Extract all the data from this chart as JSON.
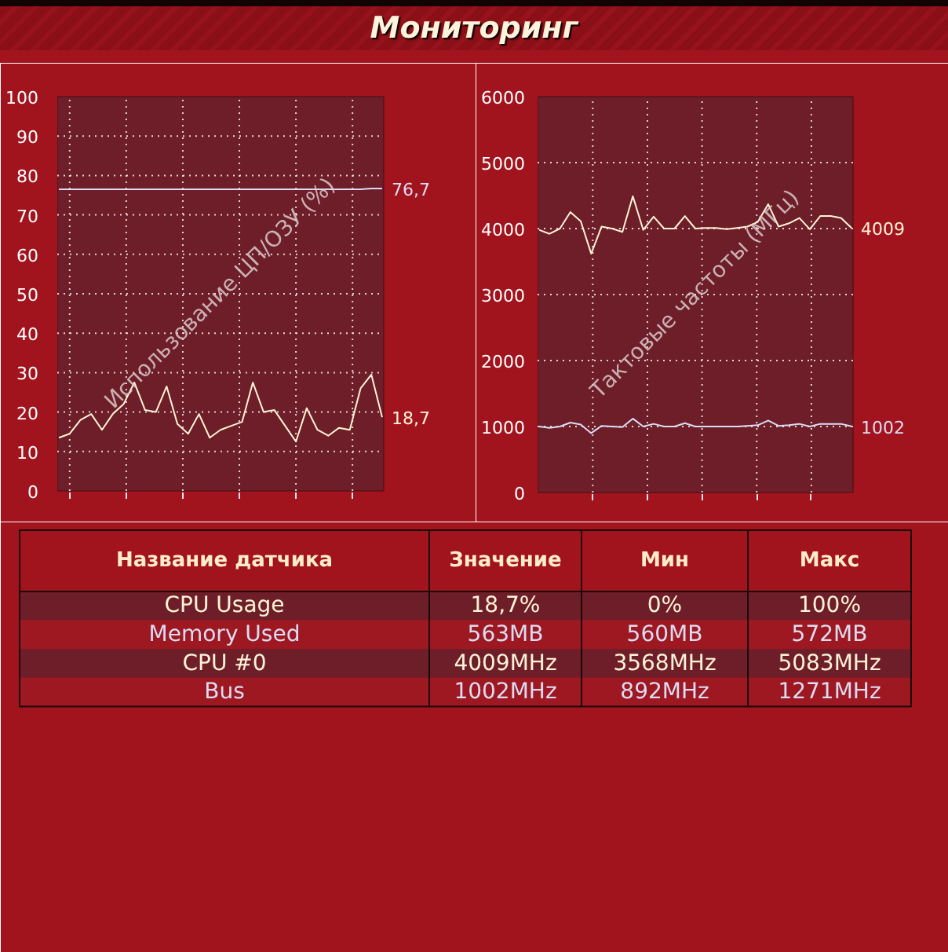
{
  "chart_data": [
    {
      "type": "line",
      "title": "Мониторинг",
      "ylabel": "Использование ЦП/ОЗУ (%)",
      "categories": [
        null,
        null,
        null,
        null,
        null,
        null,
        null,
        null,
        null,
        null,
        null,
        null,
        null,
        null,
        null,
        null,
        null,
        null,
        null,
        null,
        null,
        null,
        null,
        null,
        null,
        null,
        null,
        null,
        null,
        null,
        null
      ],
      "ylim": [
        0,
        100
      ],
      "yticks": [
        0,
        10,
        20,
        30,
        40,
        50,
        60,
        70,
        80,
        90,
        100
      ],
      "grid": true,
      "series": [
        {
          "color": "#dcdcf4",
          "values": [
            76.5,
            76.5,
            76.5,
            76.5,
            76.5,
            76.5,
            76.5,
            76.5,
            76.5,
            76.5,
            76.5,
            76.5,
            76.5,
            76.5,
            76.5,
            76.5,
            76.5,
            76.5,
            76.5,
            76.5,
            76.5,
            76.5,
            76.5,
            76.5,
            76.5,
            76.5,
            76.5,
            76.5,
            76.5,
            76.7,
            76.7
          ],
          "value_labels": [
            null,
            null,
            null,
            null,
            null,
            null,
            null,
            null,
            null,
            null,
            null,
            null,
            null,
            null,
            null,
            null,
            null,
            null,
            null,
            null,
            null,
            null,
            null,
            null,
            null,
            null,
            null,
            null,
            null,
            null,
            "76,7"
          ]
        },
        {
          "color": "#fff3d6",
          "values": [
            13.5,
            14.5,
            18,
            19.5,
            15.5,
            19.5,
            22,
            27.5,
            20.5,
            20,
            26.5,
            17,
            14.5,
            19.5,
            13.5,
            15.5,
            16.5,
            17.5,
            27.5,
            20,
            20.5,
            16.5,
            12.5,
            21,
            15.5,
            14,
            16,
            15.5,
            26,
            29.5,
            18.7
          ],
          "value_labels": [
            null,
            null,
            null,
            null,
            null,
            null,
            null,
            null,
            null,
            null,
            null,
            null,
            null,
            null,
            null,
            null,
            null,
            null,
            null,
            null,
            null,
            null,
            null,
            null,
            null,
            null,
            null,
            null,
            null,
            null,
            "18,7"
          ]
        }
      ]
    },
    {
      "type": "line",
      "ylabel": "Тактовые частоты (МГц)",
      "categories": [
        null,
        null,
        null,
        null,
        null,
        null,
        null,
        null,
        null,
        null,
        null,
        null,
        null,
        null,
        null,
        null,
        null,
        null,
        null,
        null,
        null,
        null,
        null,
        null,
        null,
        null,
        null,
        null,
        null,
        null,
        null
      ],
      "ylim": [
        0,
        6000
      ],
      "yticks": [
        0,
        1000,
        2000,
        3000,
        4000,
        5000,
        6000
      ],
      "grid": true,
      "series": [
        {
          "color": "#fff3d6",
          "values": [
            3980,
            3920,
            4000,
            4250,
            4110,
            3620,
            4030,
            4000,
            3950,
            4490,
            3980,
            4180,
            4000,
            4000,
            4190,
            4000,
            4010,
            4010,
            3990,
            4010,
            4030,
            4100,
            4370,
            4030,
            4080,
            4160,
            3990,
            4190,
            4190,
            4160,
            4009
          ],
          "value_labels": [
            null,
            null,
            null,
            null,
            null,
            null,
            null,
            null,
            null,
            null,
            null,
            null,
            null,
            null,
            null,
            null,
            null,
            null,
            null,
            null,
            null,
            null,
            null,
            null,
            null,
            null,
            null,
            null,
            null,
            null,
            "4009"
          ]
        },
        {
          "color": "#dcdcf4",
          "values": [
            1000,
            980,
            1000,
            1060,
            1030,
            900,
            1010,
            1000,
            990,
            1120,
            1000,
            1040,
            1000,
            1000,
            1050,
            1000,
            1000,
            1000,
            1000,
            1000,
            1010,
            1020,
            1090,
            1010,
            1020,
            1040,
            1000,
            1040,
            1040,
            1040,
            1002
          ],
          "value_labels": [
            null,
            null,
            null,
            null,
            null,
            null,
            null,
            null,
            null,
            null,
            null,
            null,
            null,
            null,
            null,
            null,
            null,
            null,
            null,
            null,
            null,
            null,
            null,
            null,
            null,
            null,
            null,
            null,
            null,
            null,
            "1002"
          ]
        }
      ]
    },
    {
      "type": "other",
      "categories": [
        "Название датчика",
        "Значение",
        "Мин",
        "Макс"
      ],
      "cell_labels": [
        [
          "CPU Usage",
          "18,7%",
          "0%",
          "100%"
        ],
        [
          "Memory Used",
          "563MB",
          "560MB",
          "572MB"
        ],
        [
          "CPU #0",
          "4009MHz",
          "3568MHz",
          "5083MHz"
        ],
        [
          "Bus",
          "1002MHz",
          "892MHz",
          "1271MHz"
        ]
      ]
    }
  ]
}
